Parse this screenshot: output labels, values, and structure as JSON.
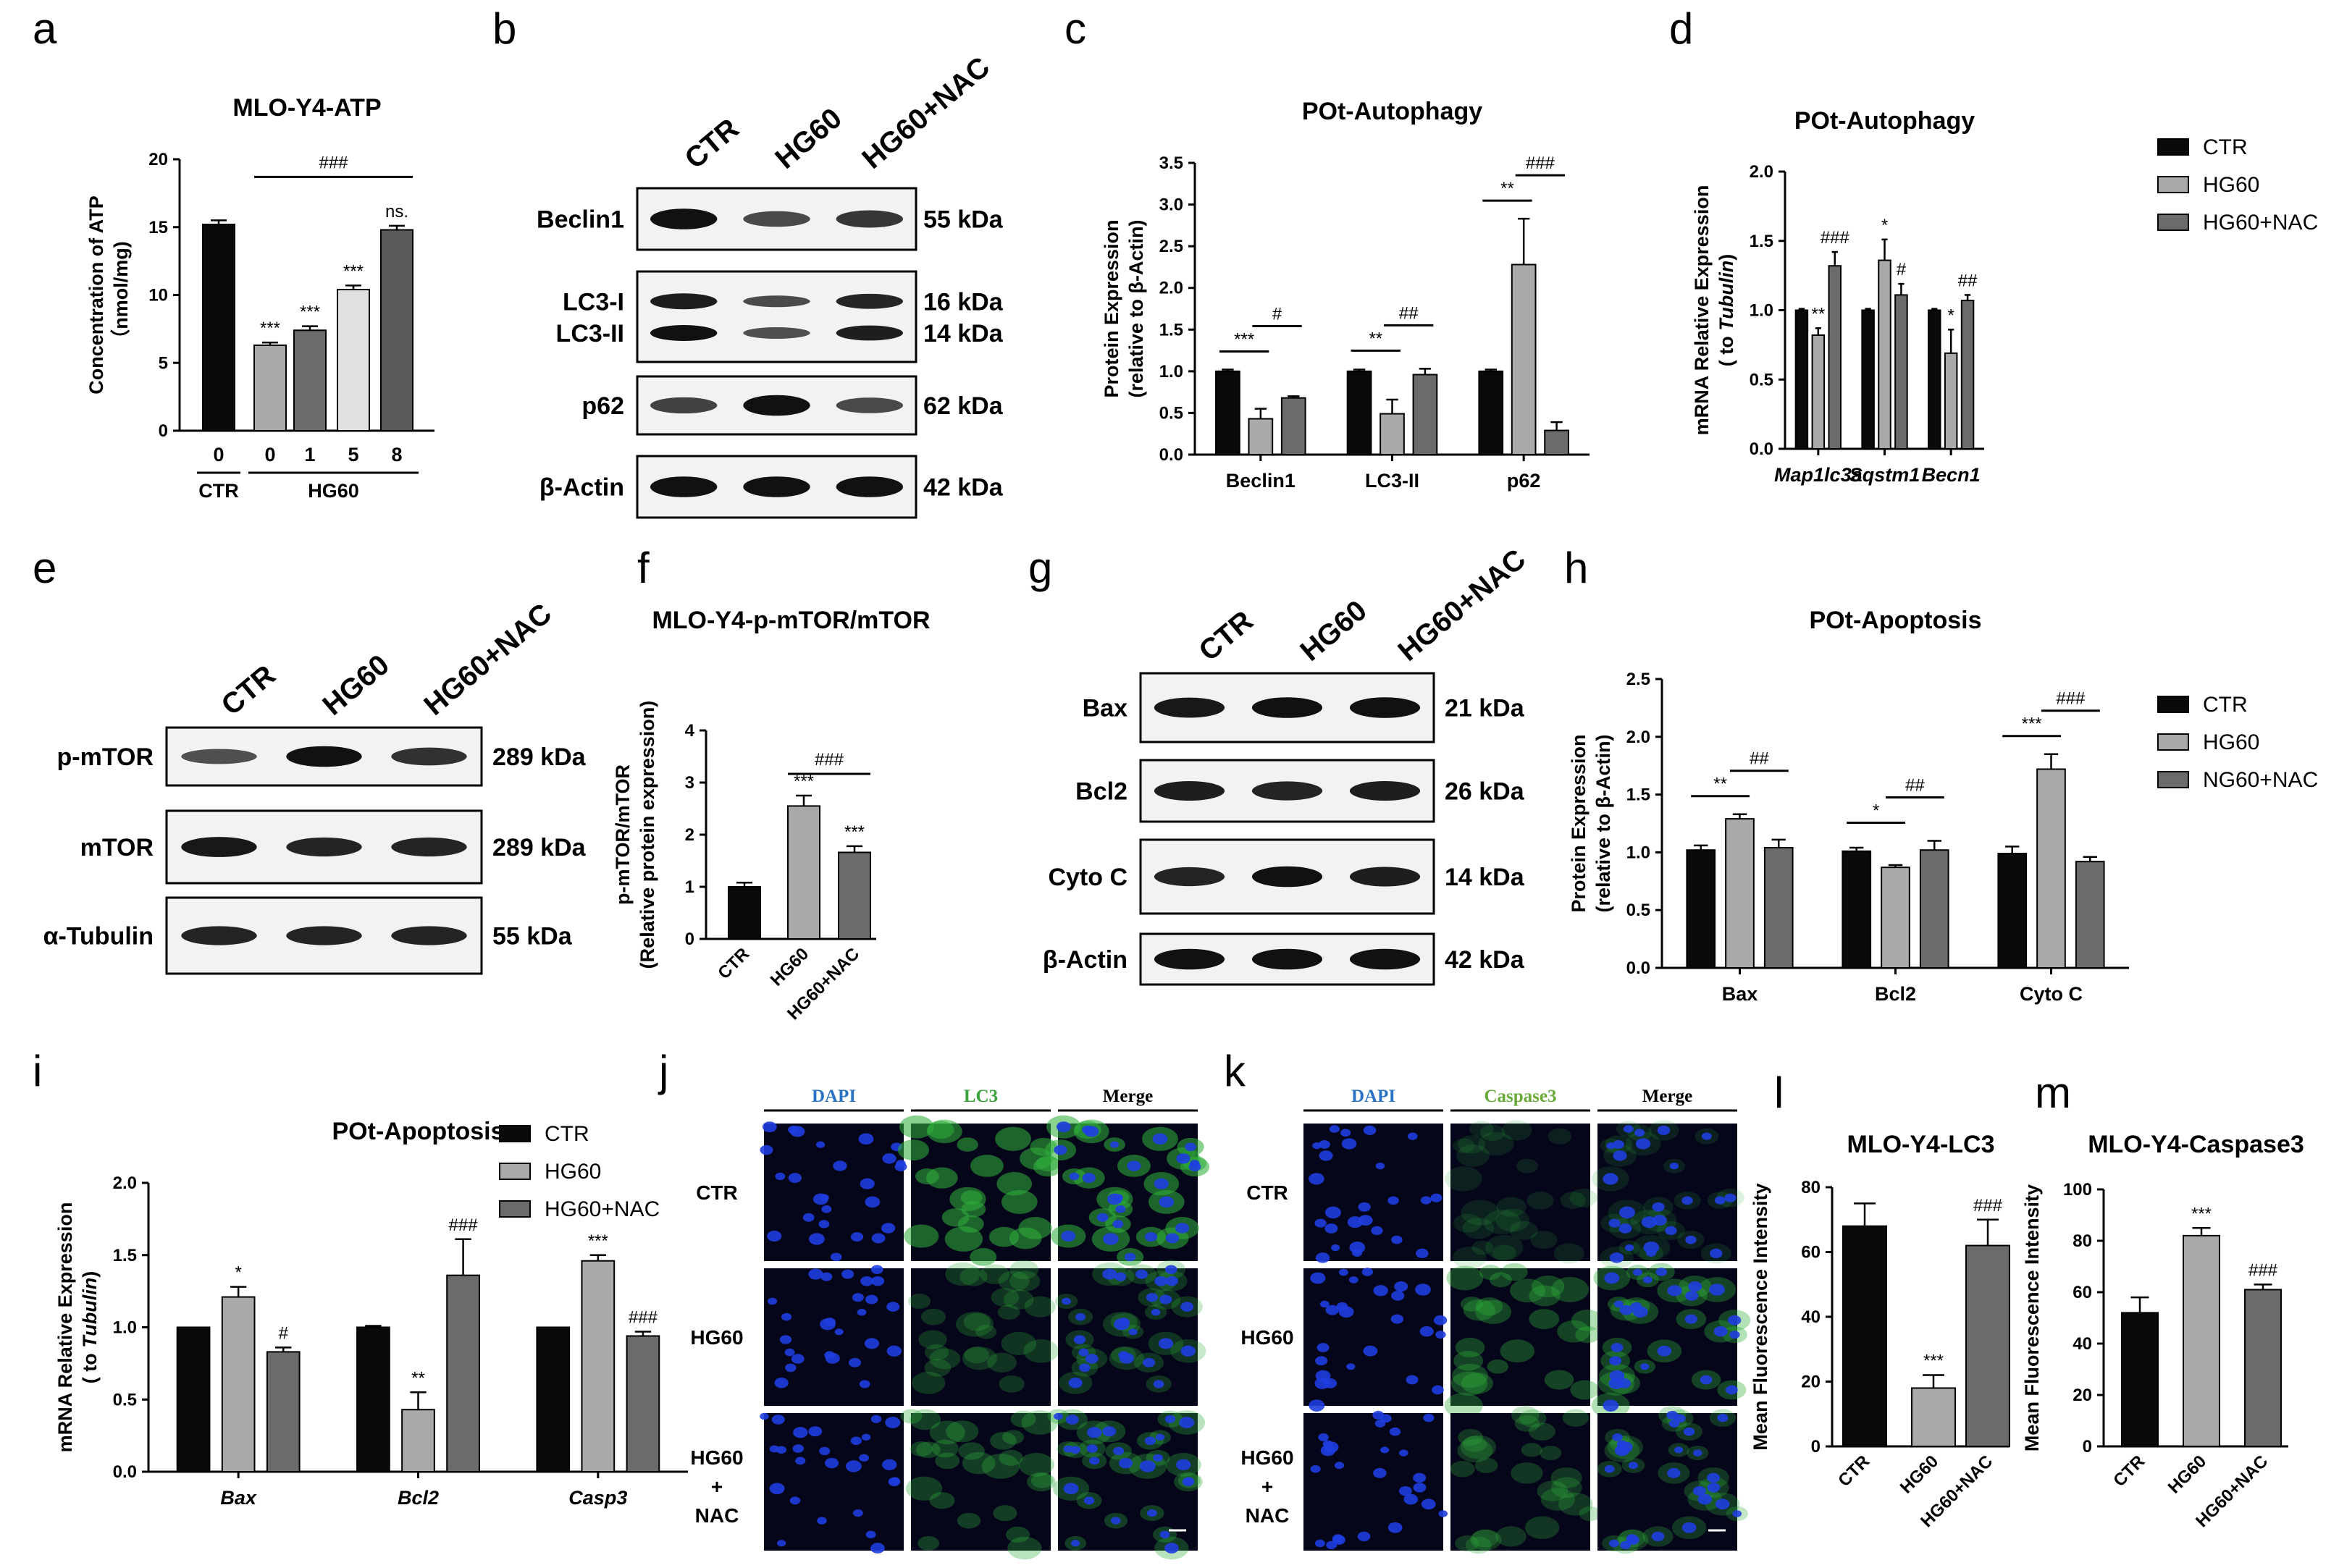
{
  "colors": {
    "ctr": "#0a0a0a",
    "hg60": "#a9a9a9",
    "nac": "#6b6b6b",
    "atp5": "#e0e0e0",
    "atp8": "#5a5a5a",
    "dapi": "#2a72c4",
    "lc3": "#3aa33a",
    "casp3": "#6aaa3a"
  },
  "panel_letters": [
    "a",
    "b",
    "c",
    "d",
    "e",
    "f",
    "g",
    "h",
    "i",
    "j",
    "k",
    "l",
    "m"
  ],
  "chart_data": [
    {
      "id": "a",
      "type": "bar",
      "title": "MLO-Y4-ATP",
      "ylabel_lines": [
        "Concentration of ATP",
        "（nmol/mg)"
      ],
      "categories": [
        "0",
        "0",
        "1",
        "5",
        "8"
      ],
      "values": [
        15.2,
        6.3,
        7.4,
        10.4,
        14.8
      ],
      "errors": [
        0.3,
        0.2,
        0.3,
        0.3,
        0.3
      ],
      "colors": [
        "ctr",
        "hg60",
        "nac",
        "atp5",
        "atp8"
      ],
      "ylim": [
        0,
        20
      ],
      "yticks": [
        "0",
        "5",
        "10",
        "15",
        "20"
      ],
      "groups": [
        {
          "label": "CTR",
          "from": 0,
          "to": 0
        },
        {
          "label": "HG60",
          "from": 1,
          "to": 4
        }
      ],
      "bar_marks": [
        "",
        "***",
        "***",
        "***",
        "ns."
      ],
      "brackets": [
        {
          "from": 1,
          "to": 4,
          "label": "###"
        }
      ]
    },
    {
      "id": "c",
      "type": "bar",
      "title": "POt-Autophagy",
      "ylabel_lines": [
        "Protein Expression",
        "(relative to β-Actin)"
      ],
      "categories": [
        "Beclin1",
        "LC3-II",
        "p62"
      ],
      "ylim": [
        0,
        3.5
      ],
      "yticks": [
        "0.0",
        "0.5",
        "1.0",
        "1.5",
        "2.0",
        "2.5",
        "3.0",
        "3.5"
      ],
      "series": [
        {
          "values": [
            1.0,
            1.0,
            1.0
          ],
          "errors": [
            0.02,
            0.02,
            0.02
          ]
        },
        {
          "values": [
            0.43,
            0.49,
            2.28
          ],
          "errors": [
            0.12,
            0.17,
            0.55
          ]
        },
        {
          "values": [
            0.68,
            0.96,
            0.29
          ],
          "errors": [
            0.02,
            0.07,
            0.1
          ]
        }
      ],
      "brackets": [
        {
          "cat": 0,
          "a": 0,
          "b": 1,
          "label": "***"
        },
        {
          "cat": 0,
          "a": 1,
          "b": 2,
          "label": "#"
        },
        {
          "cat": 1,
          "a": 0,
          "b": 1,
          "label": "**"
        },
        {
          "cat": 1,
          "a": 1,
          "b": 2,
          "label": "##"
        },
        {
          "cat": 2,
          "a": 0,
          "b": 1,
          "label": "**"
        },
        {
          "cat": 2,
          "a": 1,
          "b": 2,
          "label": "###"
        }
      ]
    },
    {
      "id": "d",
      "type": "bar",
      "title": "POt-Autophagy",
      "ylabel_lines": [
        "mRNA Relative Expression",
        "( to Tubulin)"
      ],
      "categories": [
        "Map1lc3a",
        "Sqstm1",
        "Becn1"
      ],
      "italic_cats": true,
      "ylim": [
        0,
        2.0
      ],
      "yticks": [
        "0.0",
        "0.5",
        "1.0",
        "1.5",
        "2.0"
      ],
      "series": [
        {
          "values": [
            1.0,
            1.0,
            1.0
          ],
          "errors": [
            0.01,
            0.01,
            0.01
          ]
        },
        {
          "values": [
            0.82,
            1.36,
            0.69
          ],
          "errors": [
            0.05,
            0.15,
            0.17
          ]
        },
        {
          "values": [
            1.32,
            1.11,
            1.07
          ],
          "errors": [
            0.1,
            0.08,
            0.04
          ]
        }
      ],
      "bar_marks": [
        [
          "",
          "**",
          "###"
        ],
        [
          "",
          "*",
          "#"
        ],
        [
          "",
          "*",
          "##"
        ]
      ],
      "legend": [
        "CTR",
        "HG60",
        "HG60+NAC"
      ]
    },
    {
      "id": "f",
      "type": "bar",
      "title": "MLO-Y4-p-mTOR/mTOR",
      "ylabel_lines": [
        "p-mTOR/mTOR",
        "(Relative protein expression)"
      ],
      "categories": [
        "CTR",
        "HG60",
        "HG60+NAC"
      ],
      "rotated_cats": true,
      "values": [
        1.0,
        2.55,
        1.66
      ],
      "errors": [
        0.08,
        0.2,
        0.12
      ],
      "colors": [
        "ctr",
        "hg60",
        "nac"
      ],
      "ylim": [
        0,
        4
      ],
      "yticks": [
        "0",
        "1",
        "2",
        "3",
        "4"
      ],
      "bar_marks": [
        "",
        "***",
        "***"
      ],
      "brackets": [
        {
          "from": 1,
          "to": 2,
          "label": "###"
        }
      ]
    },
    {
      "id": "h",
      "type": "bar",
      "title": "POt-Apoptosis",
      "ylabel_lines": [
        "Protein Expression",
        "(relative to β-Actin)"
      ],
      "categories": [
        "Bax",
        "Bcl2",
        "Cyto C"
      ],
      "ylim": [
        0,
        2.5
      ],
      "yticks": [
        "0.0",
        "0.5",
        "1.0",
        "1.5",
        "2.0",
        "2.5"
      ],
      "series": [
        {
          "values": [
            1.02,
            1.01,
            0.99
          ],
          "errors": [
            0.04,
            0.03,
            0.06
          ]
        },
        {
          "values": [
            1.29,
            0.87,
            1.72
          ],
          "errors": [
            0.04,
            0.02,
            0.13
          ]
        },
        {
          "values": [
            1.04,
            1.02,
            0.92
          ],
          "errors": [
            0.07,
            0.08,
            0.04
          ]
        }
      ],
      "brackets": [
        {
          "cat": 0,
          "a": 0,
          "b": 1,
          "label": "**"
        },
        {
          "cat": 0,
          "a": 1,
          "b": 2,
          "label": "##"
        },
        {
          "cat": 1,
          "a": 0,
          "b": 1,
          "label": "*"
        },
        {
          "cat": 1,
          "a": 1,
          "b": 2,
          "label": "##"
        },
        {
          "cat": 2,
          "a": 0,
          "b": 1,
          "label": "***"
        },
        {
          "cat": 2,
          "a": 1,
          "b": 2,
          "label": "###"
        }
      ],
      "legend": [
        "CTR",
        "HG60",
        "NG60+NAC"
      ]
    },
    {
      "id": "i",
      "type": "bar",
      "title": "POt-Apoptosis",
      "ylabel_lines": [
        "mRNA Relative Expression",
        "( to Tubulin)"
      ],
      "categories": [
        "Bax",
        "Bcl2",
        "Casp3"
      ],
      "italic_cats": true,
      "ylim": [
        0,
        2.0
      ],
      "yticks": [
        "0.0",
        "0.5",
        "1.0",
        "1.5",
        "2.0"
      ],
      "series": [
        {
          "values": [
            1.0,
            1.0,
            1.0
          ],
          "errors": [
            0.0,
            0.01,
            0.0
          ]
        },
        {
          "values": [
            1.21,
            0.43,
            1.46
          ],
          "errors": [
            0.07,
            0.12,
            0.04
          ]
        },
        {
          "values": [
            0.83,
            1.36,
            0.94
          ],
          "errors": [
            0.03,
            0.25,
            0.03
          ]
        }
      ],
      "bar_marks": [
        [
          "",
          "*",
          "#"
        ],
        [
          "",
          "**",
          "###"
        ],
        [
          "",
          "***",
          "###"
        ]
      ],
      "legend": [
        "CTR",
        "HG60",
        "HG60+NAC"
      ]
    },
    {
      "id": "l",
      "type": "bar",
      "title": "MLO-Y4-LC3",
      "ylabel_lines": [
        "Mean Fluorescence Intensity"
      ],
      "categories": [
        "CTR",
        "HG60",
        "HG60+NAC"
      ],
      "rotated_cats": true,
      "values": [
        68,
        18,
        62
      ],
      "errors": [
        7,
        4,
        8
      ],
      "colors": [
        "ctr",
        "hg60",
        "nac"
      ],
      "ylim": [
        0,
        80
      ],
      "yticks": [
        "0",
        "20",
        "40",
        "60",
        "80"
      ],
      "bar_marks": [
        "",
        "***",
        "###"
      ]
    },
    {
      "id": "m",
      "type": "bar",
      "title": "MLO-Y4-Caspase3",
      "ylabel_lines": [
        "Mean Fluorescence Intensity"
      ],
      "categories": [
        "CTR",
        "HG60",
        "HG60+NAC"
      ],
      "rotated_cats": true,
      "values": [
        52,
        82,
        61
      ],
      "errors": [
        6,
        3,
        2
      ],
      "colors": [
        "ctr",
        "hg60",
        "nac"
      ],
      "ylim": [
        0,
        100
      ],
      "yticks": [
        "0",
        "20",
        "40",
        "60",
        "80",
        "100"
      ],
      "bar_marks": [
        "",
        "***",
        "###"
      ]
    }
  ],
  "westerns": [
    {
      "id": "b",
      "lanes": [
        "CTR",
        "HG60",
        "HG60+NAC"
      ],
      "rows": [
        {
          "labels": [
            "Beclin1"
          ],
          "kda": [
            "55 kDa"
          ],
          "bands": [
            1.0,
            0.55,
            0.7
          ]
        },
        {
          "labels": [
            "LC3-I",
            "LC3-II"
          ],
          "kda": [
            "16 kDa",
            "14 kDa"
          ],
          "bands": [
            1.0,
            0.5,
            0.9
          ]
        },
        {
          "labels": [
            "p62"
          ],
          "kda": [
            "62 kDa"
          ],
          "bands": [
            0.6,
            1.0,
            0.55
          ]
        },
        {
          "labels": [
            "β-Actin"
          ],
          "kda": [
            "42 kDa"
          ],
          "bands": [
            1.0,
            1.0,
            1.0
          ]
        }
      ]
    },
    {
      "id": "e",
      "lanes": [
        "CTR",
        "HG60",
        "HG60+NAC"
      ],
      "rows": [
        {
          "labels": [
            "p-mTOR"
          ],
          "kda": [
            "289 kDa"
          ],
          "bands": [
            0.5,
            1.0,
            0.75
          ]
        },
        {
          "labels": [
            "mTOR"
          ],
          "kda": [
            "289 kDa"
          ],
          "bands": [
            0.95,
            0.85,
            0.85
          ]
        },
        {
          "labels": [
            "α-Tubulin"
          ],
          "kda": [
            "55 kDa"
          ],
          "bands": [
            0.85,
            0.85,
            0.85
          ]
        }
      ]
    },
    {
      "id": "g",
      "lanes": [
        "CTR",
        "HG60",
        "HG60+NAC"
      ],
      "rows": [
        {
          "labels": [
            "Bax"
          ],
          "kda": [
            "21 kDa"
          ],
          "bands": [
            0.95,
            1.0,
            1.0
          ]
        },
        {
          "labels": [
            "Bcl2"
          ],
          "kda": [
            "26 kDa"
          ],
          "bands": [
            0.9,
            0.85,
            0.9
          ]
        },
        {
          "labels": [
            "Cyto C"
          ],
          "kda": [
            "14 kDa"
          ],
          "bands": [
            0.85,
            1.0,
            0.9
          ]
        },
        {
          "labels": [
            "β-Actin"
          ],
          "kda": [
            "42 kDa"
          ],
          "bands": [
            1.0,
            1.0,
            1.0
          ]
        }
      ]
    }
  ],
  "if_panels": [
    {
      "id": "j",
      "headers": [
        "DAPI",
        "LC3",
        "Merge"
      ],
      "header_colors": [
        "dapi",
        "lc3",
        "#000"
      ],
      "rows": [
        "CTR",
        "HG60",
        "HG60\n+\nNAC"
      ],
      "green": [
        0.9,
        0.3,
        0.45
      ]
    },
    {
      "id": "k",
      "headers": [
        "DAPI",
        "Caspase3",
        "Merge"
      ],
      "header_colors": [
        "dapi",
        "casp3",
        "#000"
      ],
      "rows": [
        "CTR",
        "HG60",
        "HG60\n+\nNAC"
      ],
      "green": [
        0.1,
        0.5,
        0.35
      ]
    }
  ]
}
